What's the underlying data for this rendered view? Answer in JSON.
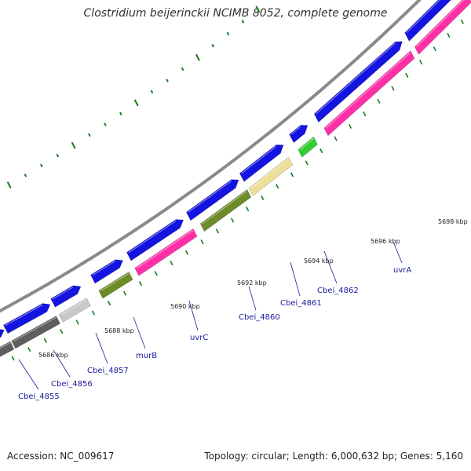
{
  "title": "Clostridium beijerinckii NCIMB 8052, complete genome",
  "footer": {
    "accession": "Accession: NC_009617",
    "topology": "Topology: circular; Length: 6,000,632 bp; Genes: 5,160"
  },
  "colors": {
    "backbone": "#8a8a8a",
    "forward_cds": "#1414e0",
    "reverse_cds": "#ff2fa8",
    "gc_ticks": "#1a7a1a",
    "dark_gray": "#5e5e5e",
    "light_gray": "#c8c8c8",
    "olive": "#6e8b2a",
    "khaki": "#ecdf9a",
    "lime": "#33cc33",
    "label": "#1a1a9c"
  },
  "ticks": [
    {
      "label": "5686 kbp"
    },
    {
      "label": "5688 kbp"
    },
    {
      "label": "5690 kbp"
    },
    {
      "label": "5692 kbp"
    },
    {
      "label": "5694 kbp"
    },
    {
      "label": "5696 kbp"
    },
    {
      "label": "5698 kbp"
    }
  ],
  "gene_labels": [
    {
      "text": "Cbei_4855"
    },
    {
      "text": "Cbei_4856"
    },
    {
      "text": "Cbei_4857"
    },
    {
      "text": "murB"
    },
    {
      "text": "uvrC"
    },
    {
      "text": "Cbei_4860"
    },
    {
      "text": "Cbei_4861"
    },
    {
      "text": "Cbei_4862"
    },
    {
      "text": "uvrA"
    }
  ]
}
